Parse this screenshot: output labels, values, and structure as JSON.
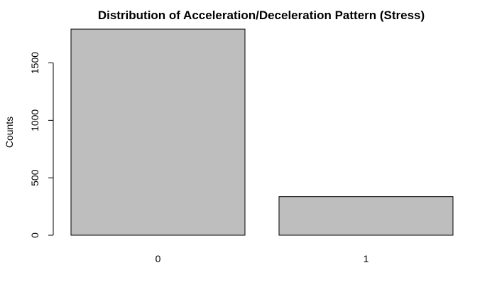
{
  "chart_data": {
    "type": "bar",
    "title": "Distribution of Acceleration/Deceleration Pattern (Stress)",
    "xlabel": "",
    "ylabel": "Counts",
    "categories": [
      "0",
      "1"
    ],
    "values": [
      1794,
      336
    ],
    "ylim": [
      0,
      1794
    ],
    "yticks": [
      0,
      500,
      1000,
      1500
    ],
    "bar_color": "#bebebe",
    "bar_border_color": "#000000",
    "grid": false,
    "legend": "none"
  }
}
